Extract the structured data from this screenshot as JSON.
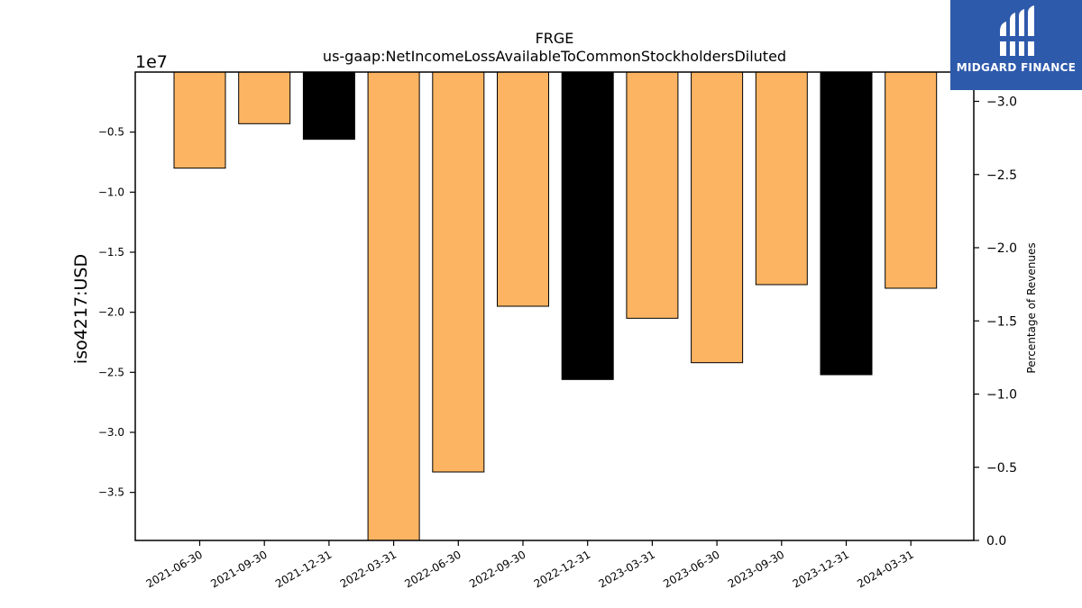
{
  "chart_data": {
    "type": "bar",
    "title": "FRGE",
    "subtitle": "us-gaap:NetIncomeLossAvailableToCommonStockholdersDiluted",
    "ylabel": "iso4217:USD",
    "y2label": "Percentage of Revenues",
    "exponent_label": "1e7",
    "categories": [
      "2021-06-30",
      "2021-09-30",
      "2021-12-31",
      "2022-03-31",
      "2022-06-30",
      "2022-09-30",
      "2022-12-31",
      "2023-03-31",
      "2023-06-30",
      "2023-09-30",
      "2023-12-31",
      "2024-03-31"
    ],
    "values": [
      -8000000,
      -4300000,
      -5600000,
      -39000000,
      -33300000,
      -19500000,
      -25600000,
      -20500000,
      -24200000,
      -17700000,
      -25200000,
      -18000000
    ],
    "bar_colors": [
      "#fdb462",
      "#fdb462",
      "#000000",
      "#fdb462",
      "#fdb462",
      "#fdb462",
      "#000000",
      "#fdb462",
      "#fdb462",
      "#fdb462",
      "#000000",
      "#fdb462"
    ],
    "ylim": [
      -39000000,
      0
    ],
    "yticks": [
      -5000000,
      -10000000,
      -15000000,
      -20000000,
      -25000000,
      -30000000,
      -35000000
    ],
    "ytick_labels": [
      "−0.5",
      "−1.0",
      "−1.5",
      "−2.0",
      "−2.5",
      "−3.0",
      "−3.5"
    ],
    "y2lim": [
      0,
      -3.2
    ],
    "y2ticks": [
      0,
      -0.5,
      -1.0,
      -1.5,
      -2.0,
      -2.5,
      -3.0
    ],
    "y2tick_labels": [
      "0.0",
      "−0.5",
      "−1.0",
      "−1.5",
      "−2.0",
      "−2.5",
      "−3.0"
    ],
    "grid": false
  },
  "logo": {
    "text": "MIDGARD FINANCE",
    "color": "#2e5aac"
  }
}
